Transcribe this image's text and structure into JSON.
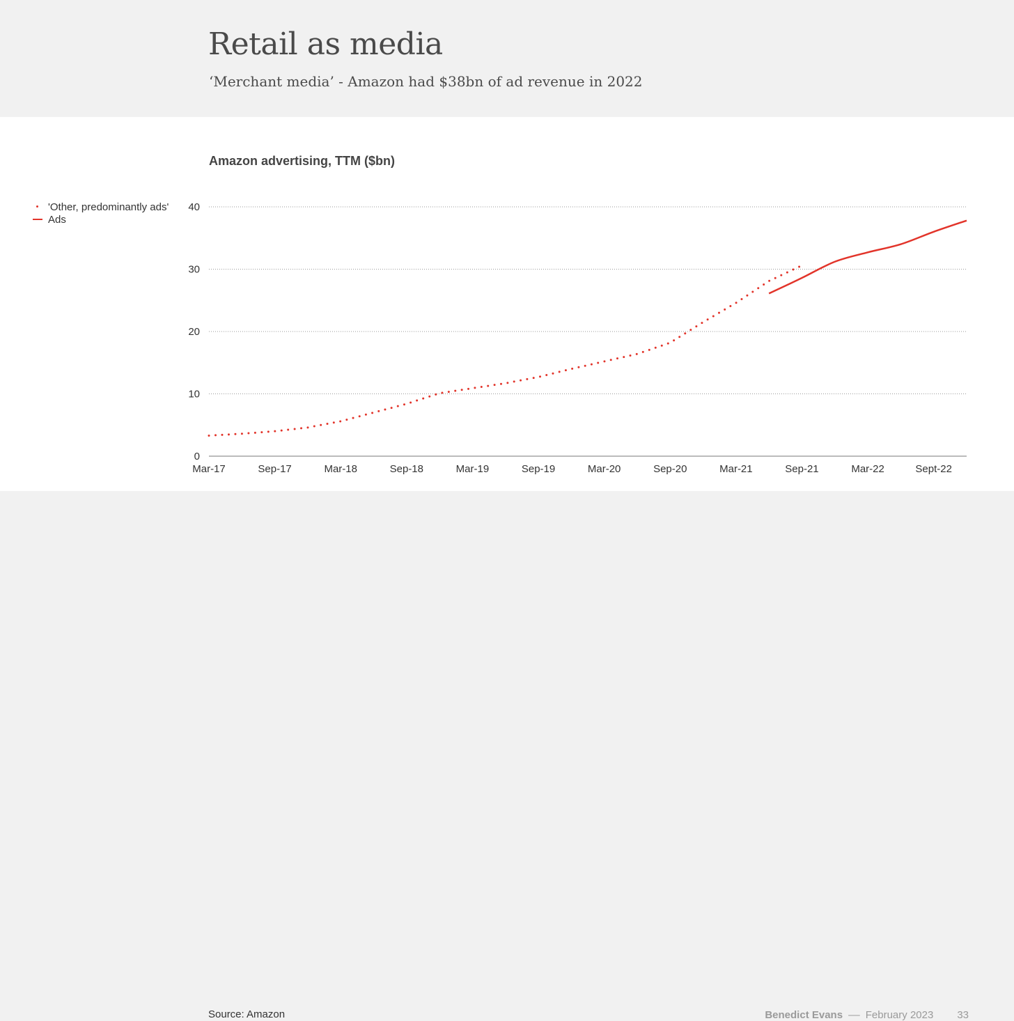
{
  "slide": {
    "title": "Retail as media",
    "subtitle": "‘Merchant media’ - Amazon had $38bn of ad revenue in 2022",
    "source": "Source: Amazon",
    "author": "Benedict Evans",
    "separator": "––",
    "date": "February 2023",
    "page_number": "33"
  },
  "colors": {
    "series": "#e2342a",
    "grid": "#9a9a9a",
    "text": "#333333"
  },
  "chart_data": {
    "type": "line",
    "title": "Amazon advertising, TTM ($bn)",
    "xlabel": "",
    "ylabel": "",
    "ylim": [
      0,
      40
    ],
    "yticks": [
      "0",
      "10",
      "20",
      "30",
      "40"
    ],
    "x_ticks": [
      "Mar-17",
      "Sep-17",
      "Mar-18",
      "Sep-18",
      "Mar-19",
      "Sep-19",
      "Mar-20",
      "Sep-20",
      "Mar-21",
      "Sep-21",
      "Mar-22",
      "Sept-22"
    ],
    "grid": true,
    "legend_position": "left",
    "series": [
      {
        "name": "'Other, predominantly ads'",
        "style": "dotted",
        "color": "#e2342a",
        "x": [
          "Mar-17",
          "Jun-17",
          "Sep-17",
          "Dec-17",
          "Mar-18",
          "Jun-18",
          "Sep-18",
          "Dec-18",
          "Mar-19",
          "Jun-19",
          "Sep-19",
          "Dec-19",
          "Mar-20",
          "Jun-20",
          "Sep-20",
          "Dec-20",
          "Mar-21",
          "Jun-21",
          "Sep-21"
        ],
        "values": [
          3.3,
          3.6,
          4.0,
          4.6,
          5.6,
          7.0,
          8.4,
          10.1,
          10.9,
          11.7,
          12.7,
          14.0,
          15.2,
          16.4,
          18.2,
          21.5,
          24.6,
          28.1,
          30.6
        ]
      },
      {
        "name": "Ads",
        "style": "solid",
        "color": "#e2342a",
        "x": [
          "Jun-21",
          "Sep-21",
          "Dec-21",
          "Mar-22",
          "Jun-22",
          "Sep-22",
          "Dec-22"
        ],
        "values": [
          26.1,
          28.6,
          31.2,
          32.7,
          34.0,
          36.0,
          37.8
        ]
      }
    ]
  }
}
